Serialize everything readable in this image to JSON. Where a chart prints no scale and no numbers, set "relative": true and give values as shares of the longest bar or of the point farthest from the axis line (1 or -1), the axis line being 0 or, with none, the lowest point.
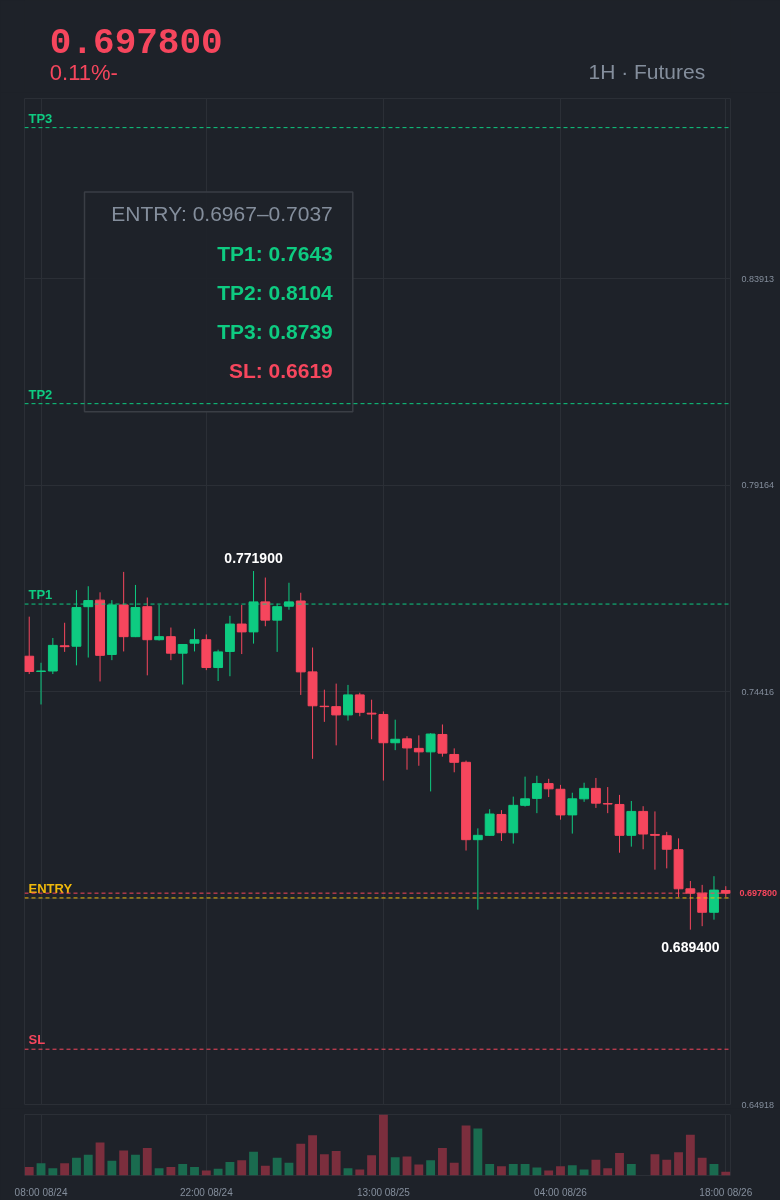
{
  "chart_data": [
    {
      "type": "candlestick",
      "title": "0.697800",
      "subtitle": "0.11%-",
      "annotations": [
        "1H · Futures",
        "ENTRY: 0.6967–0.7037",
        "TP1: 0.7643",
        "TP2: 0.8104",
        "TP3: 0.8739",
        "SL: 0.6619",
        {
          "text": "0.771900",
          "y": 0.7719
        },
        {
          "text": "0.689400",
          "y": 0.6894
        }
      ],
      "categories": [
        null,
        "08:00 08/24",
        null,
        null,
        null,
        null,
        null,
        null,
        null,
        null,
        null,
        null,
        null,
        null,
        null,
        "22:00 08/24",
        null,
        null,
        null,
        null,
        null,
        null,
        null,
        null,
        null,
        null,
        null,
        null,
        null,
        null,
        "13:00 08/25",
        null,
        null,
        null,
        null,
        null,
        null,
        null,
        null,
        null,
        null,
        null,
        null,
        null,
        null,
        "04:00 08/26",
        null,
        null,
        null,
        null,
        null,
        null,
        null,
        null,
        null,
        null,
        null,
        null,
        null,
        "18:00 08/26"
      ],
      "ohlc": [
        [
          0.7523,
          0.7614,
          0.7482,
          0.7488
        ],
        [
          0.7488,
          0.7508,
          0.7412,
          0.7489
        ],
        [
          0.7489,
          0.7565,
          0.7482,
          0.7548
        ],
        [
          0.7547,
          0.76,
          0.7533,
          0.7545
        ],
        [
          0.7546,
          0.7675,
          0.7502,
          0.7635
        ],
        [
          0.7637,
          0.7684,
          0.752,
          0.7651
        ],
        [
          0.7652,
          0.767,
          0.7465,
          0.7525
        ],
        [
          0.7527,
          0.7652,
          0.7514,
          0.7641
        ],
        [
          0.7641,
          0.7717,
          0.7534,
          0.7568
        ],
        [
          0.7568,
          0.7687,
          0.7567,
          0.7635
        ],
        [
          0.7637,
          0.7658,
          0.7479,
          0.7561
        ],
        [
          0.7561,
          0.7641,
          0.7559,
          0.7568
        ],
        [
          0.7568,
          0.7589,
          0.7514,
          0.753
        ],
        [
          0.753,
          0.755,
          0.7458,
          0.755
        ],
        [
          0.7553,
          0.7586,
          0.7534,
          0.7561
        ],
        [
          0.7561,
          0.7573,
          0.7491,
          0.7497
        ],
        [
          0.7497,
          0.7538,
          0.7466,
          0.7533
        ],
        [
          0.7534,
          0.7616,
          0.7477,
          0.7597
        ],
        [
          0.7597,
          0.7641,
          0.7528,
          0.7579
        ],
        [
          0.7579,
          0.7719,
          0.7552,
          0.7648
        ],
        [
          0.7648,
          0.7704,
          0.7592,
          0.7606
        ],
        [
          0.7606,
          0.7644,
          0.7533,
          0.7637
        ],
        [
          0.7638,
          0.7692,
          0.763,
          0.7648
        ],
        [
          0.765,
          0.7669,
          0.7434,
          0.7487
        ],
        [
          0.7487,
          0.7543,
          0.7287,
          0.7409
        ],
        [
          0.7408,
          0.7446,
          0.7372,
          0.7407
        ],
        [
          0.7407,
          0.746,
          0.7318,
          0.7388
        ],
        [
          0.7388,
          0.7457,
          0.7375,
          0.7434
        ],
        [
          0.7434,
          0.7439,
          0.7385,
          0.7394
        ],
        [
          0.7392,
          0.7423,
          0.7332,
          0.739
        ],
        [
          0.7389,
          0.7396,
          0.7237,
          0.7324
        ],
        [
          0.7324,
          0.7377,
          0.7307,
          0.7332
        ],
        [
          0.7333,
          0.7339,
          0.7262,
          0.7312
        ],
        [
          0.7311,
          0.7341,
          0.7271,
          0.7303
        ],
        [
          0.7303,
          0.7346,
          0.7212,
          0.7344
        ],
        [
          0.7343,
          0.7366,
          0.7292,
          0.73
        ],
        [
          0.7297,
          0.7311,
          0.7256,
          0.7279
        ],
        [
          0.7279,
          0.7283,
          0.7076,
          0.7101
        ],
        [
          0.7101,
          0.7127,
          0.694,
          0.7111
        ],
        [
          0.7111,
          0.7171,
          0.711,
          0.716
        ],
        [
          0.7159,
          0.7169,
          0.7098,
          0.7117
        ],
        [
          0.7117,
          0.72,
          0.7092,
          0.718
        ],
        [
          0.718,
          0.7246,
          0.7177,
          0.7195
        ],
        [
          0.7196,
          0.7248,
          0.7162,
          0.723
        ],
        [
          0.723,
          0.7241,
          0.7199,
          0.7218
        ],
        [
          0.7217,
          0.7227,
          0.7147,
          0.7158
        ],
        [
          0.7158,
          0.7209,
          0.7115,
          0.7195
        ],
        [
          0.7195,
          0.7232,
          0.7188,
          0.7219
        ],
        [
          0.7219,
          0.7243,
          0.7174,
          0.7185
        ],
        [
          0.7184,
          0.7222,
          0.7162,
          0.7183
        ],
        [
          0.7182,
          0.7204,
          0.7071,
          0.7111
        ],
        [
          0.7111,
          0.719,
          0.7085,
          0.7166
        ],
        [
          0.7166,
          0.7178,
          0.7079,
          0.7114
        ],
        [
          0.7113,
          0.7166,
          0.7032,
          0.7111
        ],
        [
          0.711,
          0.7119,
          0.7035,
          0.7079
        ],
        [
          0.7078,
          0.7104,
          0.6969,
          0.6988
        ],
        [
          0.6988,
          0.7006,
          0.6894,
          0.6978
        ],
        [
          0.6978,
          0.6997,
          0.6902,
          0.6934
        ],
        [
          0.6934,
          0.7017,
          0.6917,
          0.6985
        ],
        [
          0.6984,
          0.6994,
          0.6969,
          0.6978
        ]
      ],
      "colors": [
        "#f6465d",
        "#0ecb81",
        "#0ecb81",
        "#f6465d",
        "#0ecb81",
        "#0ecb81",
        "#f6465d",
        "#0ecb81",
        "#f6465d",
        "#0ecb81",
        "#f6465d",
        "#0ecb81",
        "#f6465d",
        "#0ecb81",
        "#0ecb81",
        "#f6465d",
        "#0ecb81",
        "#0ecb81",
        "#f6465d",
        "#0ecb81",
        "#f6465d",
        "#0ecb81",
        "#0ecb81",
        "#f6465d",
        "#f6465d",
        "#f6465d",
        "#f6465d",
        "#0ecb81",
        "#f6465d",
        "#f6465d",
        "#f6465d",
        "#0ecb81",
        "#f6465d",
        "#f6465d",
        "#0ecb81",
        "#f6465d",
        "#f6465d",
        "#f6465d",
        "#0ecb81",
        "#0ecb81",
        "#f6465d",
        "#0ecb81",
        "#0ecb81",
        "#0ecb81",
        "#f6465d",
        "#f6465d",
        "#0ecb81",
        "#0ecb81",
        "#f6465d",
        "#f6465d",
        "#f6465d",
        "#0ecb81",
        "#f6465d",
        "#f6465d",
        "#f6465d",
        "#f6465d",
        "#f6465d",
        "#f6465d",
        "#0ecb81",
        "#f6465d"
      ],
      "ylim": [
        0.64918,
        0.8806
      ],
      "yticks": [
        0.64918,
        {
          "value": 0.69667,
          "label": null
        },
        0.74416,
        0.79164,
        0.83913
      ],
      "grid": true,
      "ref_lines": [
        {
          "axis": "y",
          "value": 0.6967,
          "label": "ENTRY",
          "color": "#f0b90b",
          "line_style": "dashed"
        },
        {
          "axis": "y",
          "value": 0.7643,
          "label": "TP1",
          "color": "#0ecb81",
          "line_style": "dashed"
        },
        {
          "axis": "y",
          "value": 0.8104,
          "label": "TP2",
          "color": "#0ecb81",
          "line_style": "dashed"
        },
        {
          "axis": "y",
          "value": 0.8739,
          "label": "TP3",
          "color": "#0ecb81",
          "line_style": "dashed"
        },
        {
          "axis": "y",
          "value": 0.6619,
          "label": "SL",
          "color": "#f6465d",
          "line_style": "dashed"
        },
        {
          "axis": "y",
          "value": 0.6978,
          "label": "0.697800",
          "color": "#f6465d",
          "line_style": "dashed"
        }
      ]
    },
    {
      "type": "bar",
      "relative": true,
      "categories": [
        null,
        null,
        null,
        null,
        null,
        null,
        null,
        null,
        null,
        null,
        null,
        null,
        null,
        null,
        null,
        null,
        null,
        null,
        null,
        null,
        null,
        null,
        null,
        null,
        null,
        null,
        null,
        null,
        null,
        null,
        null,
        null,
        null,
        null,
        null,
        null,
        null,
        null,
        null,
        null,
        null,
        null,
        null,
        null,
        null,
        null,
        null,
        null,
        null,
        null,
        null,
        null,
        null,
        null,
        null,
        null,
        null,
        null,
        null,
        null
      ],
      "values": [
        0.14,
        0.2,
        0.12,
        0.2,
        0.29,
        0.34,
        0.54,
        0.24,
        0.41,
        0.34,
        0.45,
        0.12,
        0.14,
        0.19,
        0.14,
        0.08,
        0.11,
        0.22,
        0.25,
        0.39,
        0.16,
        0.29,
        0.21,
        0.52,
        0.66,
        0.35,
        0.4,
        0.12,
        0.1,
        0.33,
        1,
        0.3,
        0.31,
        0.18,
        0.25,
        0.45,
        0.21,
        0.82,
        0.77,
        0.19,
        0.15,
        0.19,
        0.19,
        0.13,
        0.08,
        0.15,
        0.17,
        0.1,
        0.26,
        0.12,
        0.37,
        0.19,
        null,
        0.35,
        0.26,
        0.38,
        0.67,
        0.29,
        0.19,
        0.06
      ],
      "colors": [
        "#7b2e3d",
        "#1a6b4f",
        "#1a6b4f",
        "#7b2e3d",
        "#1a6b4f",
        "#1a6b4f",
        "#7b2e3d",
        "#1a6b4f",
        "#7b2e3d",
        "#1a6b4f",
        "#7b2e3d",
        "#1a6b4f",
        "#7b2e3d",
        "#1a6b4f",
        "#1a6b4f",
        "#7b2e3d",
        "#1a6b4f",
        "#1a6b4f",
        "#7b2e3d",
        "#1a6b4f",
        "#7b2e3d",
        "#1a6b4f",
        "#1a6b4f",
        "#7b2e3d",
        "#7b2e3d",
        "#7b2e3d",
        "#7b2e3d",
        "#1a6b4f",
        "#7b2e3d",
        "#7b2e3d",
        "#7b2e3d",
        "#1a6b4f",
        "#7b2e3d",
        "#7b2e3d",
        "#1a6b4f",
        "#7b2e3d",
        "#7b2e3d",
        "#7b2e3d",
        "#1a6b4f",
        "#1a6b4f",
        "#7b2e3d",
        "#1a6b4f",
        "#1a6b4f",
        "#1a6b4f",
        "#7b2e3d",
        "#7b2e3d",
        "#1a6b4f",
        "#1a6b4f",
        "#7b2e3d",
        "#7b2e3d",
        "#7b2e3d",
        "#1a6b4f",
        "#7b2e3d",
        "#7b2e3d",
        "#7b2e3d",
        "#7b2e3d",
        "#7b2e3d",
        "#7b2e3d",
        "#1a6b4f",
        "#7b2e3d"
      ],
      "grid": "x"
    }
  ]
}
